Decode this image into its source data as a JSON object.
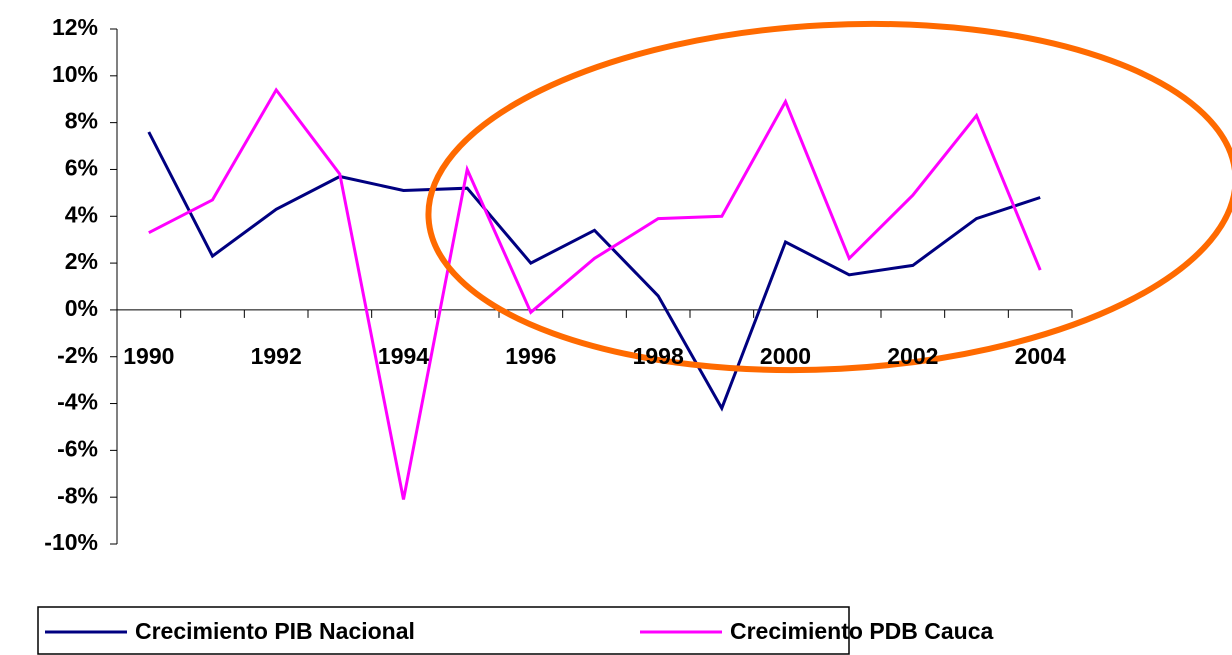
{
  "chart_data": {
    "type": "line",
    "categories": [
      "1990",
      null,
      "1992",
      null,
      "1994",
      null,
      "1996",
      null,
      "1998",
      null,
      "2000",
      null,
      "2002",
      null,
      "2004"
    ],
    "series": [
      {
        "name": "Crecimiento PIB Nacional",
        "color": "#000080",
        "values": [
          7.6,
          2.3,
          4.3,
          5.7,
          5.1,
          5.2,
          2.0,
          3.4,
          0.6,
          -4.2,
          2.9,
          1.5,
          1.9,
          3.9,
          4.8
        ]
      },
      {
        "name": "Crecimiento PDB Cauca",
        "color": "#ff00ff",
        "values": [
          3.3,
          4.7,
          9.4,
          5.8,
          -8.1,
          6.0,
          -0.1,
          2.2,
          3.9,
          4.0,
          8.9,
          2.2,
          4.9,
          8.3,
          1.7
        ]
      }
    ],
    "ylim": [
      -10,
      12
    ],
    "yticks": [
      {
        "value": -10,
        "label": "-10%"
      },
      {
        "value": -8,
        "label": "-8%"
      },
      {
        "value": -6,
        "label": "-6%"
      },
      {
        "value": -4,
        "label": "-4%"
      },
      {
        "value": -2,
        "label": "-2%"
      },
      {
        "value": 0,
        "label": "0%"
      },
      {
        "value": 2,
        "label": "2%"
      },
      {
        "value": 4,
        "label": "4%"
      },
      {
        "value": 6,
        "label": "6%"
      },
      {
        "value": 8,
        "label": "8%"
      },
      {
        "value": 10,
        "label": "10%"
      },
      {
        "value": 12,
        "label": "12%"
      }
    ],
    "grid": false,
    "legend": "bottom"
  }
}
